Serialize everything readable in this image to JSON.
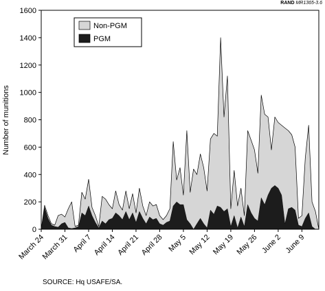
{
  "header": {
    "org": "RAND",
    "figure_id": "MR1365-3.6"
  },
  "source": "SOURCE:  Hq USAFE/SA.",
  "colors": {
    "non_pgm": "#d6d6d6",
    "pgm": "#1c1c1c",
    "axis": "#000000"
  },
  "chart_data": {
    "type": "area",
    "ylabel": "Number of munitions",
    "xlabel": "",
    "ylim": [
      0,
      1600
    ],
    "yticks": [
      0,
      200,
      400,
      600,
      800,
      1000,
      1200,
      1400,
      1600
    ],
    "x_range": [
      "March 24",
      "June 11"
    ],
    "xticks": [
      "March 24",
      "March 31",
      "April 7",
      "April 14",
      "April 21",
      "April 28",
      "May 5",
      "May 12",
      "May 19",
      "May 26",
      "June 2",
      "June 9"
    ],
    "legend": {
      "position": "top-left",
      "entries": [
        "Non-PGM",
        "PGM"
      ]
    },
    "series": [
      {
        "name": "Non-PGM",
        "values": [
          0,
          175,
          100,
          40,
          30,
          100,
          110,
          90,
          150,
          200,
          20,
          30,
          270,
          220,
          365,
          160,
          100,
          20,
          240,
          220,
          180,
          150,
          280,
          180,
          140,
          280,
          150,
          260,
          120,
          300,
          170,
          100,
          200,
          170,
          180,
          100,
          70,
          100,
          150,
          640,
          360,
          450,
          250,
          720,
          270,
          440,
          400,
          550,
          450,
          280,
          660,
          700,
          680,
          1400,
          820,
          1120,
          150,
          430,
          170,
          300,
          100,
          720,
          650,
          580,
          410,
          980,
          840,
          820,
          580,
          820,
          780,
          760,
          740,
          720,
          690,
          600,
          80,
          100,
          520,
          760,
          200,
          130,
          0
        ]
      },
      {
        "name": "PGM",
        "values": [
          0,
          160,
          80,
          30,
          20,
          15,
          40,
          50,
          10,
          5,
          10,
          20,
          120,
          100,
          170,
          100,
          50,
          10,
          60,
          40,
          70,
          80,
          120,
          100,
          70,
          130,
          70,
          120,
          50,
          130,
          80,
          40,
          90,
          70,
          80,
          40,
          30,
          50,
          60,
          170,
          200,
          180,
          180,
          70,
          40,
          0,
          40,
          80,
          40,
          10,
          140,
          110,
          170,
          160,
          130,
          150,
          20,
          100,
          10,
          90,
          20,
          180,
          120,
          80,
          60,
          230,
          180,
          250,
          300,
          320,
          300,
          250,
          40,
          150,
          160,
          140,
          30,
          20,
          80,
          120,
          20,
          0,
          0
        ]
      }
    ]
  }
}
